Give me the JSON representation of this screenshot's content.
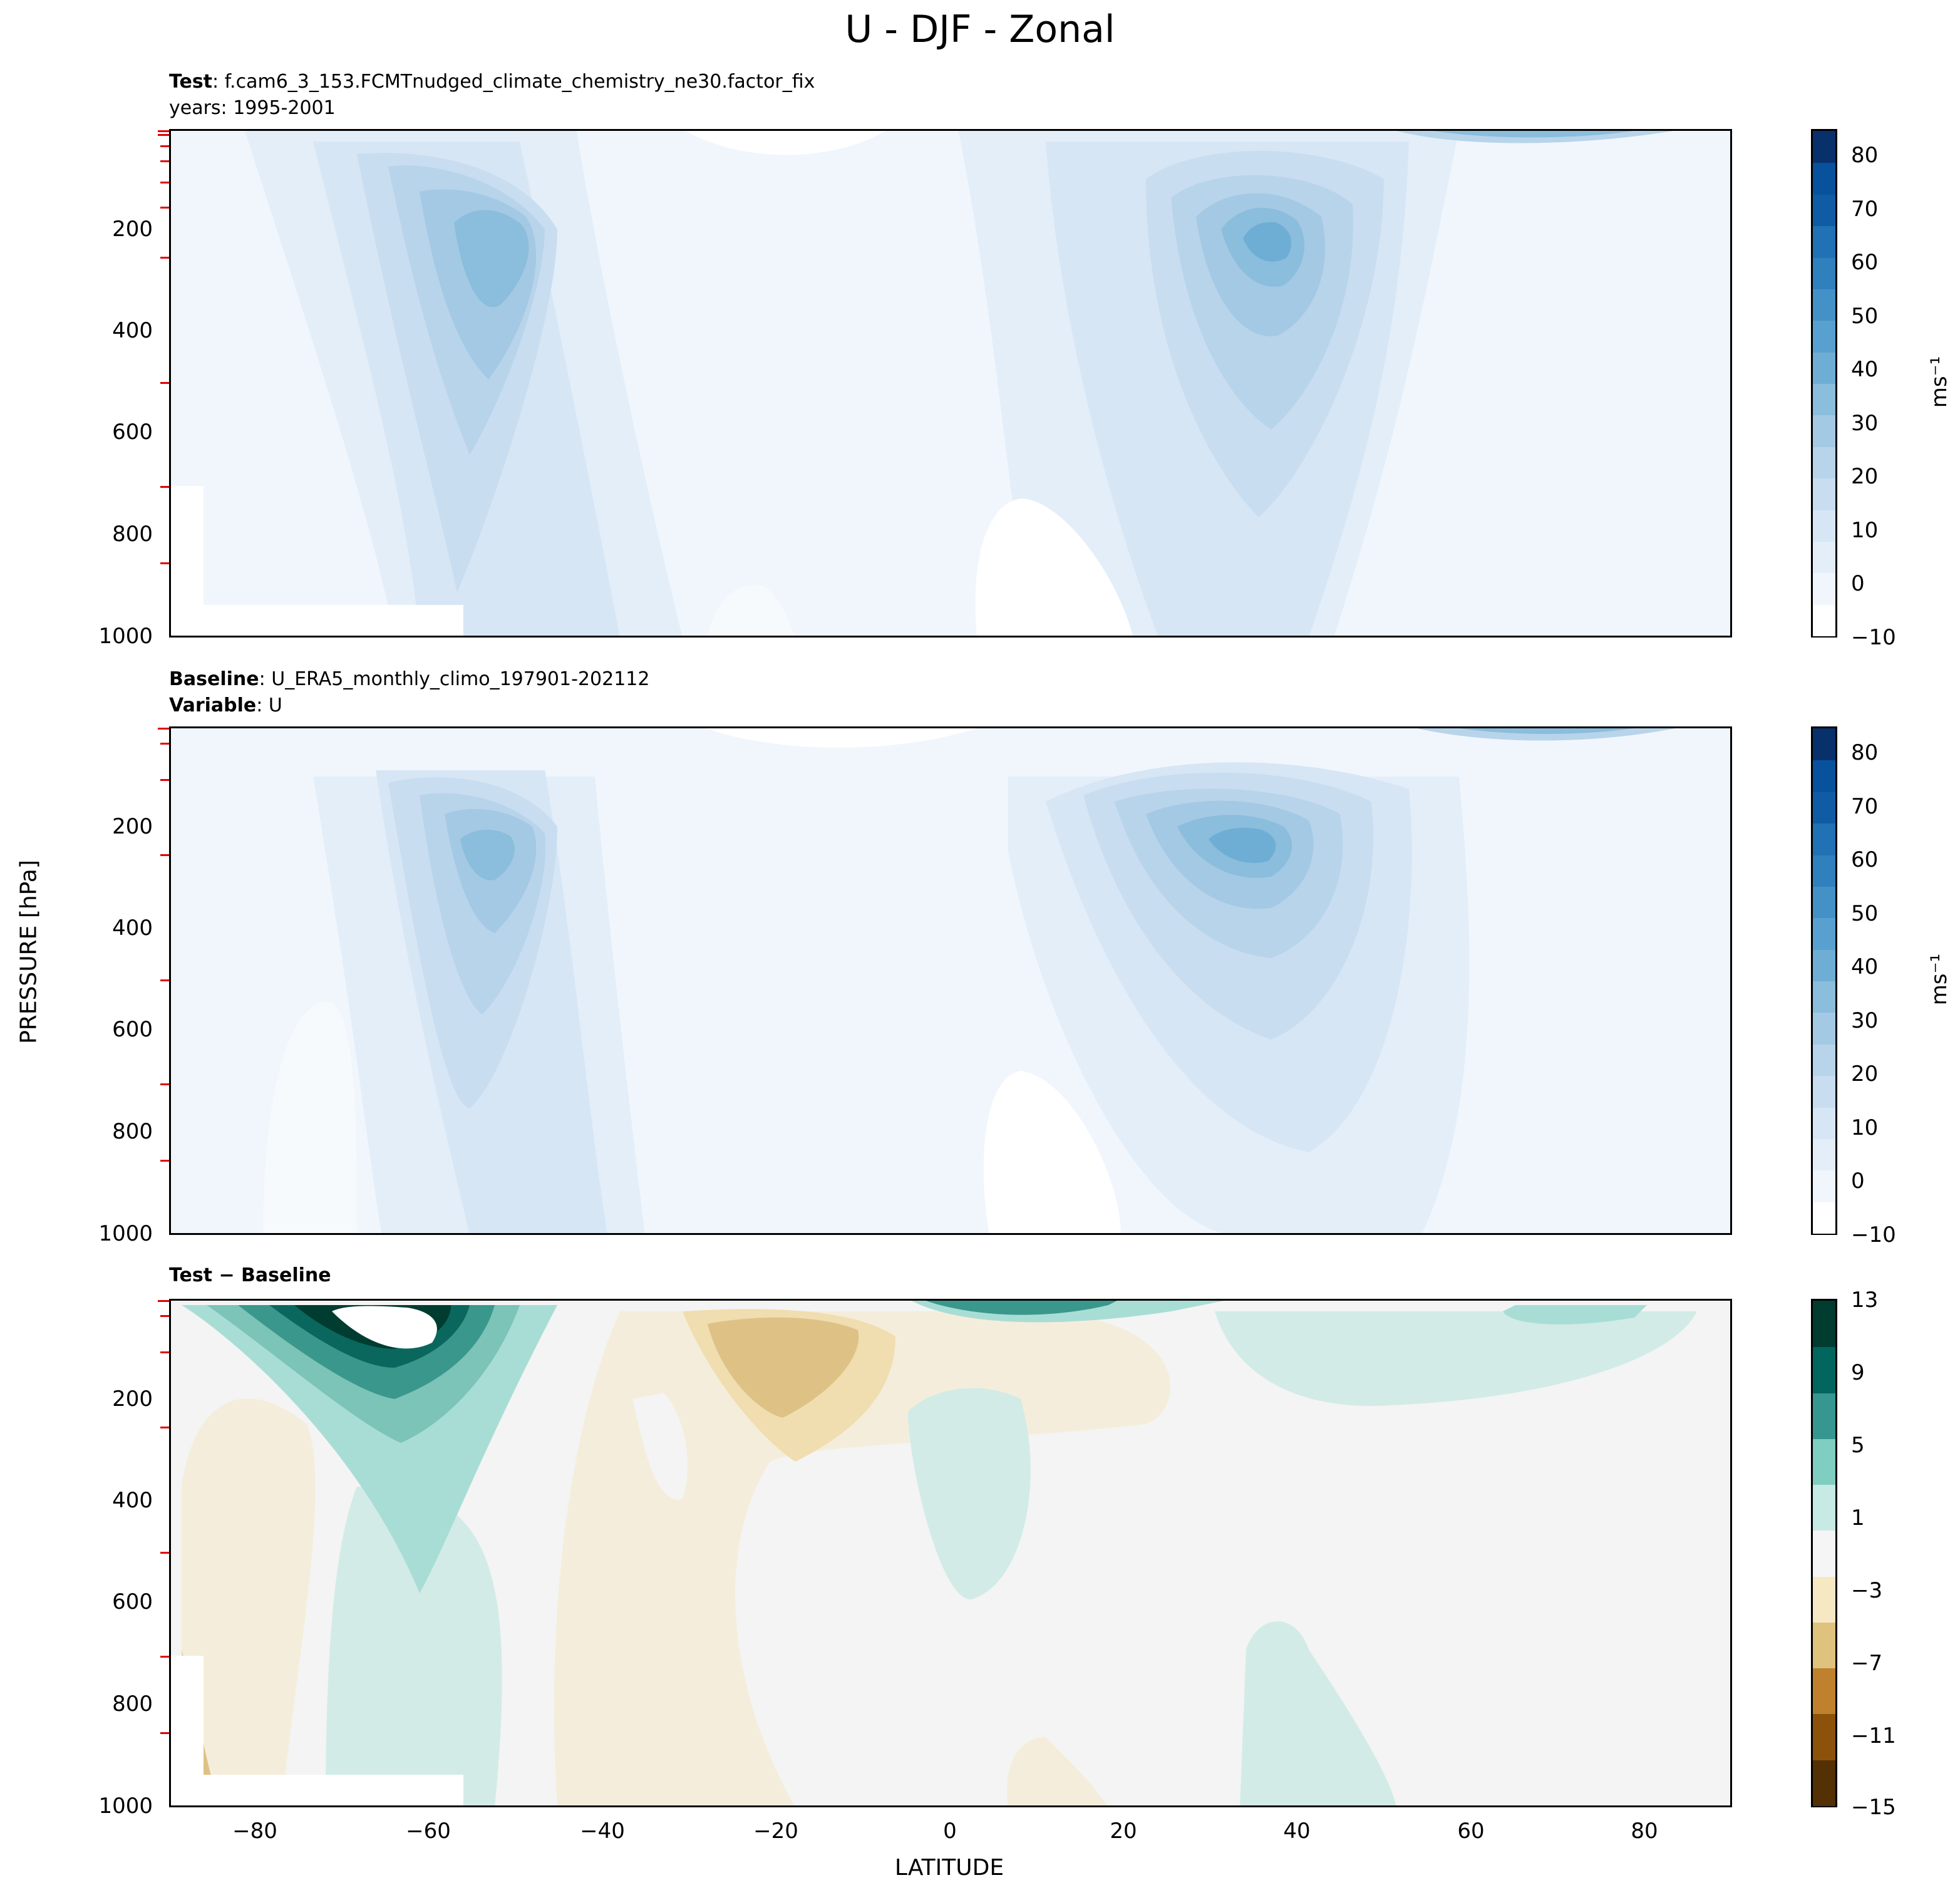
{
  "figure": {
    "title": "U - DJF - Zonal",
    "ylabel": "PRESSURE [hPa]",
    "xlabel": "LATITUDE"
  },
  "colors": {
    "blues": [
      "#ffffff",
      "#f0f6fc",
      "#e3eef9",
      "#d7e6f5",
      "#c9ddf0",
      "#b8d4ea",
      "#a4c9e4",
      "#8bbddc",
      "#6faed4",
      "#58a0cf",
      "#4391c6",
      "#2f80bd",
      "#2171b5",
      "#0f5ca5",
      "#08519c",
      "#08306b"
    ],
    "diverging": [
      "#543005",
      "#8c510a",
      "#bf812d",
      "#dfc27d",
      "#f6e8c3",
      "#f5f5f5",
      "#c7eae5",
      "#80cdc1",
      "#35978f",
      "#01665e",
      "#003c30"
    ]
  },
  "chart_data": [
    {
      "type": "heatmap",
      "panel": "test",
      "title_lines": [
        {
          "bold": "Test",
          "text": ": f.cam6_3_153.FCMTnudged_climate_chemistry_ne30.factor_fix"
        },
        {
          "bold": "",
          "text": "years: 1995-2001"
        }
      ],
      "xlim": [
        -90,
        90
      ],
      "ylim": [
        1000,
        0
      ],
      "y_ticks": [
        "200",
        "400",
        "600",
        "800",
        "1000"
      ],
      "y_tick_values": [
        200,
        400,
        600,
        800,
        1000
      ],
      "colorbar": {
        "label": "ms⁻¹",
        "ticks": [
          "80",
          "70",
          "60",
          "50",
          "40",
          "30",
          "20",
          "10",
          "0",
          "−10"
        ],
        "tick_values": [
          80,
          70,
          60,
          50,
          40,
          30,
          20,
          10,
          0,
          -10
        ],
        "range": [
          -10,
          85
        ]
      },
      "features": [
        {
          "kind": "jet",
          "lat": -52,
          "p": 220,
          "max": 42
        },
        {
          "kind": "jet",
          "lat": 30,
          "p": 200,
          "max": 50
        },
        {
          "kind": "polar-strat",
          "lat": 65,
          "p": 10,
          "max": 45
        }
      ]
    },
    {
      "type": "heatmap",
      "panel": "baseline",
      "title_lines": [
        {
          "bold": "Baseline",
          "text": ": U_ERA5_monthly_climo_197901-202112"
        },
        {
          "bold": "Variable",
          "text": ": U"
        }
      ],
      "xlim": [
        -90,
        90
      ],
      "ylim": [
        1000,
        0
      ],
      "y_ticks": [
        "200",
        "400",
        "600",
        "800",
        "1000"
      ],
      "y_tick_values": [
        200,
        400,
        600,
        800,
        1000
      ],
      "colorbar": {
        "label": "ms⁻¹",
        "ticks": [
          "80",
          "70",
          "60",
          "50",
          "40",
          "30",
          "20",
          "10",
          "0",
          "−10"
        ],
        "tick_values": [
          80,
          70,
          60,
          50,
          40,
          30,
          20,
          10,
          0,
          -10
        ],
        "range": [
          -10,
          85
        ]
      },
      "features": [
        {
          "kind": "jet",
          "lat": -47,
          "p": 240,
          "max": 40
        },
        {
          "kind": "jet",
          "lat": 31,
          "p": 200,
          "max": 48
        },
        {
          "kind": "polar-strat",
          "lat": 65,
          "p": 10,
          "max": 40
        }
      ]
    },
    {
      "type": "heatmap",
      "panel": "difference",
      "title_lines": [
        {
          "bold": "Test − Baseline",
          "text": ""
        }
      ],
      "xlim": [
        -90,
        90
      ],
      "ylim": [
        1000,
        0
      ],
      "x_ticks": [
        "−80",
        "−60",
        "−40",
        "−20",
        "0",
        "20",
        "40",
        "60",
        "80"
      ],
      "x_tick_values": [
        -80,
        -60,
        -40,
        -20,
        0,
        20,
        40,
        60,
        80
      ],
      "y_ticks": [
        "200",
        "400",
        "600",
        "800",
        "1000"
      ],
      "y_tick_values": [
        200,
        400,
        600,
        800,
        1000
      ],
      "colorbar": {
        "label": "",
        "ticks": [
          "13",
          "9",
          "5",
          "1",
          "−3",
          "−7",
          "−11",
          "−15"
        ],
        "tick_values": [
          13,
          9,
          5,
          1,
          -3,
          -7,
          -11,
          -15
        ],
        "range": [
          -15,
          13
        ]
      },
      "features": [
        {
          "kind": "positive",
          "lat": -62,
          "p": 50,
          "max": 13
        },
        {
          "kind": "negative",
          "lat": -20,
          "p": 120,
          "max": -5
        },
        {
          "kind": "positive",
          "lat": 5,
          "p": 20,
          "max": 9
        }
      ]
    }
  ]
}
